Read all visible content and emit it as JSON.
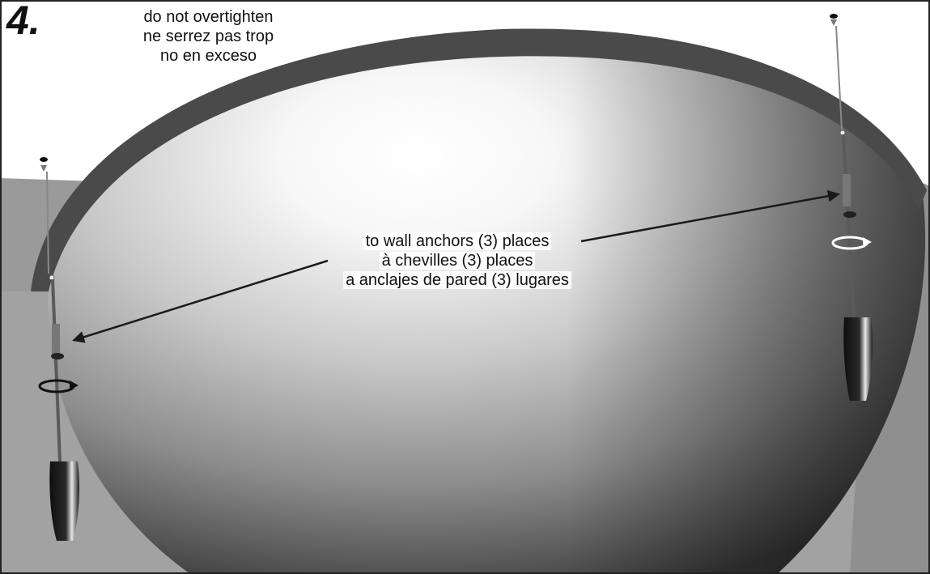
{
  "step": {
    "number": "4."
  },
  "caution": {
    "lines": [
      "do not overtighten",
      "ne serrez pas trop",
      "no en exceso"
    ]
  },
  "anchor_note": {
    "lines": [
      "to wall anchors (3) places",
      "à chevilles (3) places",
      "a anclajes de pared (3) lugares"
    ]
  },
  "colors": {
    "frame_border": "#222222",
    "wall": "#9a9a9a",
    "rim": "#4a4a4a",
    "bowl_highlight": "#ffffff",
    "bowl_shadow": "#3c3c3c",
    "arrow": "#1a1a1a",
    "screw": "#888888",
    "screwdriver_handle": "#1c1c1c"
  },
  "icons": [
    "screw-icon",
    "screwdriver-icon",
    "rotation-arrow-icon",
    "double-arrow-icon"
  ]
}
